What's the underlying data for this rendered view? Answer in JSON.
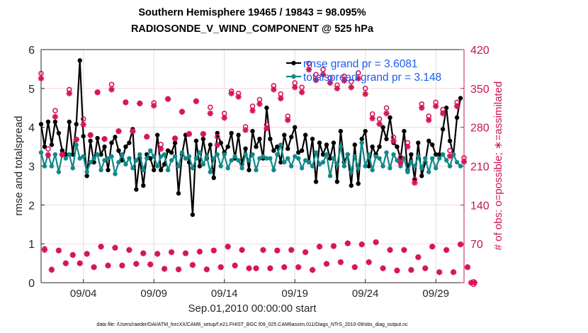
{
  "chart_data": {
    "type": "line",
    "title": [
      "Southern Hemisphere 19465 / 19843 = 98.095%",
      "RADIOSONDE_V_WIND_COMPONENT @ 525 hPa"
    ],
    "xlabel": "Sep.01,2010 00:00:00 start",
    "ylabel": "rmse and totalspread",
    "ylabel_right": "# of obs: o=possible; ∗=assimilated",
    "footer": "data file: /Users/raeder/DAI/ATM_forcXX/CAM6_setup/f.e21.FHIST_BGC.f09_025.CAM6assim.011/Diags_NTrS_2010-09/obs_diag_output.nc",
    "x_range_days": [
      0,
      30
    ],
    "x_ticks": [
      {
        "day": 3,
        "label": "09/04"
      },
      {
        "day": 8,
        "label": "09/09"
      },
      {
        "day": 13,
        "label": "09/14"
      },
      {
        "day": 18,
        "label": "09/19"
      },
      {
        "day": 23,
        "label": "09/24"
      },
      {
        "day": 28,
        "label": "09/29"
      }
    ],
    "ylim": [
      0,
      6
    ],
    "y_ticks": [
      0,
      1,
      2,
      3,
      4,
      5,
      6
    ],
    "ylim_right": [
      0,
      420
    ],
    "y_ticks_right": [
      0,
      70,
      140,
      210,
      280,
      350,
      420
    ],
    "grid": true,
    "legend_position": "top-right",
    "time_step_days": 0.25,
    "series": [
      {
        "name": "rmse grand pr = 3.6081",
        "color": "#000000",
        "axis": "left",
        "values": [
          4.08,
          3.5,
          4.14,
          3.55,
          4.14,
          3.85,
          3.4,
          3.3,
          4.14,
          3.3,
          4.08,
          5.72,
          3.77,
          2.75,
          3.65,
          3.1,
          3.72,
          3.3,
          3.5,
          2.9,
          3.6,
          3.75,
          3.4,
          3.15,
          3.5,
          3.6,
          3.95,
          2.4,
          3.2,
          2.5,
          3.3,
          3.2,
          2.9,
          3.8,
          2.9,
          3.05,
          3.4,
          3.35,
          3.6,
          2.3,
          3.3,
          3.8,
          3.1,
          1.75,
          3.65,
          3.0,
          3.7,
          3.2,
          3.55,
          2.7,
          3.85,
          3.6,
          3.35,
          3.5,
          3.85,
          3.2,
          3.8,
          3.05,
          3.45,
          2.9,
          3.9,
          3.5,
          3.7,
          3.2,
          4.5,
          3.7,
          3.4,
          3.5,
          3.1,
          3.8,
          3.45,
          3.75,
          4.0,
          3.35,
          3.4,
          3.8,
          3.1,
          3.7,
          2.6,
          3.6,
          3.3,
          3.55,
          3.2,
          3.6,
          2.6,
          3.9,
          3.1,
          3.3,
          2.5,
          3.55,
          2.55,
          3.7,
          3.9,
          3.0,
          3.5,
          3.3,
          3.5,
          4.0,
          3.7,
          4.25,
          3.6,
          3.5,
          3.2,
          3.9,
          2.9,
          3.3,
          2.65,
          3.6,
          2.75,
          3.1,
          3.65,
          3.55,
          3.3,
          3.3,
          3.95,
          4.5,
          3.65,
          3.3,
          4.25,
          4.75
        ]
      },
      {
        "name": "totalspread grand pr = 3.148",
        "color": "#10898a",
        "axis": "left",
        "values": [
          3.35,
          3.0,
          3.3,
          3.0,
          3.3,
          2.85,
          3.3,
          3.2,
          3.3,
          2.95,
          3.55,
          3.2,
          3.25,
          2.85,
          3.1,
          3.2,
          3.3,
          2.9,
          3.15,
          3.2,
          3.25,
          2.8,
          3.1,
          3.3,
          3.05,
          3.2,
          2.95,
          3.15,
          3.3,
          2.9,
          3.2,
          3.4,
          3.25,
          3.0,
          3.25,
          3.3,
          2.9,
          3.15,
          3.25,
          3.0,
          3.35,
          3.2,
          3.25,
          2.95,
          3.2,
          3.35,
          3.05,
          3.25,
          2.85,
          3.2,
          3.3,
          3.0,
          3.3,
          2.95,
          3.15,
          3.25,
          3.15,
          2.95,
          3.3,
          3.15,
          3.3,
          2.9,
          3.2,
          3.25,
          3.2,
          3.2,
          2.9,
          3.3,
          3.55,
          3.1,
          3.2,
          3.0,
          3.25,
          3.2,
          2.95,
          3.15,
          3.1,
          3.0,
          3.35,
          3.05,
          3.1,
          3.3,
          2.75,
          3.2,
          3.05,
          3.5,
          3.0,
          3.3,
          2.85,
          3.25,
          2.95,
          3.6,
          3.0,
          3.3,
          2.9,
          3.25,
          3.2,
          3.0,
          3.35,
          2.95,
          3.3,
          3.15,
          3.0,
          3.2,
          2.85,
          3.1,
          3.0,
          3.25,
          2.95,
          3.2,
          2.85,
          3.2,
          2.95,
          3.2,
          3.3,
          3.15,
          3.0,
          3.3,
          3.1,
          3.0
        ]
      }
    ],
    "obs_count": {
      "color": "#d6155a",
      "axis": "right",
      "possible": [
        377,
        61,
        241,
        24,
        310,
        58,
        231,
        35,
        348,
        50,
        258,
        35,
        295,
        52,
        266,
        28,
        343,
        65,
        259,
        31,
        357,
        63,
        273,
        31,
        325,
        59,
        273,
        34,
        323,
        53,
        263,
        33,
        324,
        52,
        249,
        25,
        331,
        55,
        260,
        24,
        308,
        53,
        268,
        32,
        327,
        56,
        268,
        24,
        316,
        58,
        263,
        28,
        305,
        65,
        345,
        31,
        341,
        59,
        281,
        26,
        318,
        26,
        330,
        59,
        285,
        26,
        355,
        58,
        340,
        28,
        300,
        59,
        360,
        28,
        352,
        55,
        395,
        23,
        375,
        65,
        384,
        34,
        369,
        66,
        356,
        37,
        372,
        71,
        362,
        28,
        378,
        69,
        350,
        37,
        304,
        73,
        295,
        26,
        315,
        59,
        262,
        22,
        226,
        59,
        252,
        23,
        186,
        46,
        322,
        26,
        300,
        65,
        325,
        19,
        312,
        59,
        238,
        19,
        325,
        69,
        225,
        28,
        0,
        0
      ],
      "assimilated": [
        368,
        59,
        230,
        23,
        299,
        58,
        231,
        35,
        341,
        50,
        258,
        35,
        285,
        52,
        266,
        28,
        343,
        65,
        259,
        31,
        348,
        63,
        273,
        31,
        325,
        59,
        273,
        34,
        323,
        53,
        263,
        33,
        319,
        52,
        241,
        25,
        331,
        55,
        260,
        24,
        308,
        53,
        268,
        32,
        327,
        56,
        268,
        24,
        305,
        58,
        248,
        28,
        297,
        65,
        341,
        31,
        335,
        59,
        275,
        26,
        310,
        26,
        322,
        59,
        278,
        26,
        348,
        58,
        332,
        28,
        293,
        59,
        352,
        28,
        343,
        55,
        384,
        23,
        365,
        65,
        375,
        34,
        360,
        66,
        350,
        37,
        364,
        71,
        352,
        28,
        368,
        69,
        340,
        37,
        296,
        73,
        286,
        26,
        305,
        59,
        255,
        22,
        216,
        59,
        245,
        23,
        180,
        46,
        315,
        26,
        293,
        65,
        318,
        19,
        305,
        59,
        228,
        19,
        318,
        69,
        218,
        28,
        0,
        0
      ]
    }
  }
}
